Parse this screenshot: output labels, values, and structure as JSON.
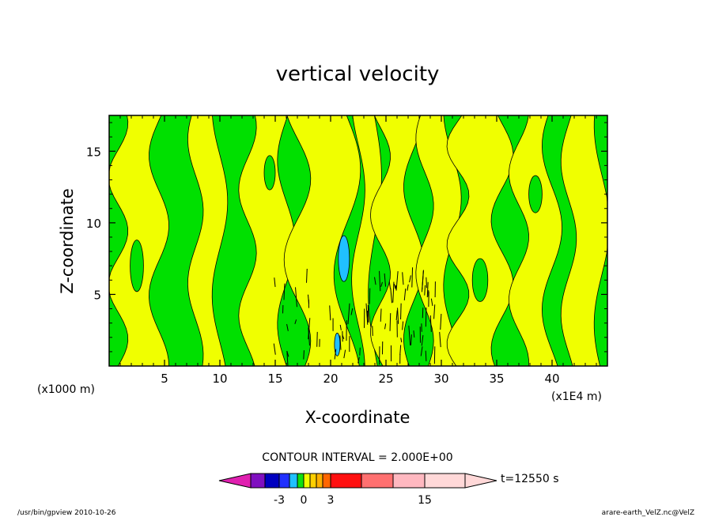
{
  "chart_data": {
    "type": "heatmap",
    "title": "vertical velocity",
    "xlabel": "X-coordinate",
    "ylabel": "Z-coordinate",
    "x_units": "(x1E4 m)",
    "y_units": "(x1000 m)",
    "xlim": [
      0,
      45
    ],
    "ylim": [
      0,
      17.5
    ],
    "x_ticks": [
      5,
      10,
      15,
      20,
      25,
      30,
      35,
      40
    ],
    "y_ticks": [
      5,
      10,
      15
    ],
    "contour_interval_label": "CONTOUR INTERVAL = 2.000E+00",
    "time_label": "t=12550 s",
    "colorbar": {
      "ticks": [
        "-3",
        "0",
        "3",
        "15"
      ],
      "colors": [
        "#e020b0",
        "#8010c0",
        "#0000c0",
        "#2030ff",
        "#20c0ff",
        "#10e010",
        "#f0ff00",
        "#ffd000",
        "#ffb000",
        "#ff6600",
        "#ff1010",
        "#ff7070",
        "#ffb8c0",
        "#ffd8d8"
      ]
    },
    "footer_left": "/usr/bin/gpview  2010-10-26",
    "footer_right": "arare-earth_VelZ.nc@VelZ",
    "fill_colors": {
      "positive": "#f0ff00",
      "negative": "#00e000",
      "strong_neg": "#20c0ff",
      "strong_pos": "#ff8000"
    }
  }
}
